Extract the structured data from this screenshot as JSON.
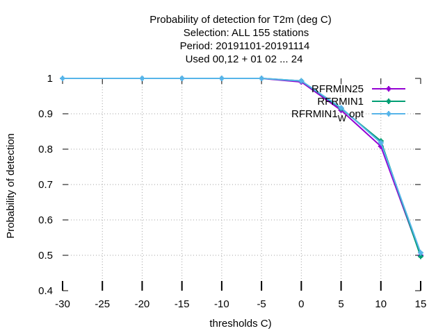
{
  "chart_data": {
    "type": "line",
    "title_lines": [
      "Probability of detection  for T2m (deg C)",
      "Selection: ALL    155 stations",
      "Period: 20191101-20191114",
      "Used  00,12  + 01 02 ... 24"
    ],
    "xlabel": "thresholds C)",
    "ylabel": "Probability of detection",
    "xlim": [
      -30,
      15
    ],
    "ylim": [
      0.4,
      1.0
    ],
    "x_ticks": [
      -30,
      -25,
      -20,
      -15,
      -10,
      -5,
      0,
      5,
      10,
      15
    ],
    "x_tick_labels": [
      "-30",
      "-25",
      "-20",
      "-15",
      "-10",
      "-5",
      "0",
      "5",
      "10",
      "15"
    ],
    "y_ticks": [
      0.4,
      0.5,
      0.6,
      0.7,
      0.8,
      0.9,
      1.0
    ],
    "y_tick_labels": [
      "0.4",
      "0.5",
      "0.6",
      "0.7",
      "0.8",
      "0.9",
      "1"
    ],
    "grid": true,
    "legend_position": "top-right",
    "x": [
      -30,
      -20,
      -15,
      -10,
      -5,
      0,
      5,
      10,
      15
    ],
    "series": [
      {
        "name": "RFRMIN25",
        "color": "#9400d3",
        "marker": "plus",
        "values": [
          1.0,
          1.0,
          1.0,
          1.0,
          1.0,
          0.99,
          0.91,
          0.808,
          0.5
        ]
      },
      {
        "name": "RFRMIN1",
        "color": "#009e73",
        "marker": "plus",
        "values": [
          1.0,
          1.0,
          1.0,
          1.0,
          1.0,
          0.993,
          0.915,
          0.823,
          0.497
        ]
      },
      {
        "name": "RFRMIN1",
        "name_sub": "W",
        "name_suffix": "opt",
        "color": "#56b4e9",
        "marker": "plus",
        "values": [
          1.0,
          1.0,
          1.0,
          1.0,
          1.0,
          0.993,
          0.917,
          0.818,
          0.507
        ]
      }
    ]
  }
}
